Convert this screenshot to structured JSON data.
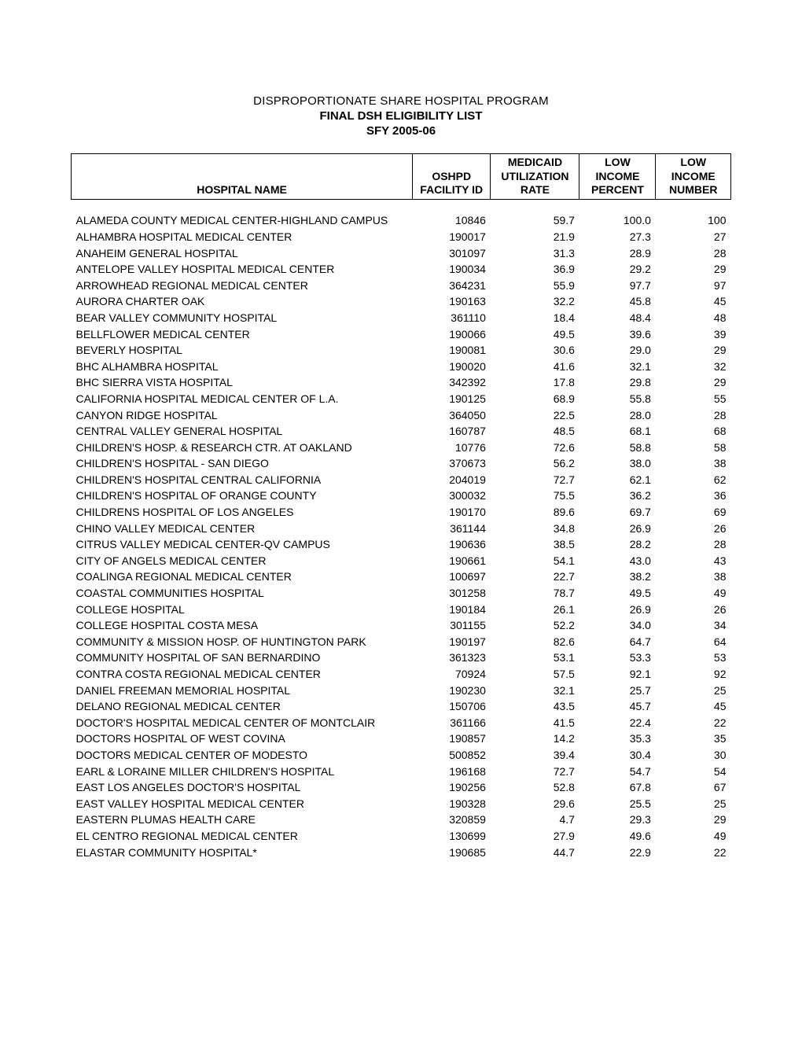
{
  "header": {
    "line1": "DISPROPORTIONATE SHARE HOSPITAL PROGRAM",
    "line2": "FINAL DSH ELIGIBILITY LIST",
    "line3": "SFY 2005-06"
  },
  "columns": {
    "name": "HOSPITAL NAME",
    "facility_id_top": "OSHPD",
    "facility_id_bot": "FACILITY ID",
    "rate_top": "MEDICAID",
    "rate_mid": "UTILIZATION",
    "rate_bot": "RATE",
    "pct_top": "LOW",
    "pct_mid": "INCOME",
    "pct_bot": "PERCENT",
    "num_top": "LOW",
    "num_mid": "INCOME",
    "num_bot": "NUMBER"
  },
  "rows": [
    {
      "name": "ALAMEDA COUNTY MEDICAL CENTER-HIGHLAND CAMPUS",
      "id": "10846",
      "rate": "59.7",
      "pct": "100.0",
      "num": "100"
    },
    {
      "name": "ALHAMBRA HOSPITAL MEDICAL CENTER",
      "id": "190017",
      "rate": "21.9",
      "pct": "27.3",
      "num": "27"
    },
    {
      "name": "ANAHEIM GENERAL HOSPITAL",
      "id": "301097",
      "rate": "31.3",
      "pct": "28.9",
      "num": "28"
    },
    {
      "name": "ANTELOPE VALLEY HOSPITAL MEDICAL CENTER",
      "id": "190034",
      "rate": "36.9",
      "pct": "29.2",
      "num": "29"
    },
    {
      "name": "ARROWHEAD REGIONAL MEDICAL CENTER",
      "id": "364231",
      "rate": "55.9",
      "pct": "97.7",
      "num": "97"
    },
    {
      "name": "AURORA CHARTER OAK",
      "id": "190163",
      "rate": "32.2",
      "pct": "45.8",
      "num": "45"
    },
    {
      "name": "BEAR VALLEY COMMUNITY HOSPITAL",
      "id": "361110",
      "rate": "18.4",
      "pct": "48.4",
      "num": "48"
    },
    {
      "name": "BELLFLOWER MEDICAL CENTER",
      "id": "190066",
      "rate": "49.5",
      "pct": "39.6",
      "num": "39"
    },
    {
      "name": "BEVERLY HOSPITAL",
      "id": "190081",
      "rate": "30.6",
      "pct": "29.0",
      "num": "29"
    },
    {
      "name": "BHC ALHAMBRA HOSPITAL",
      "id": "190020",
      "rate": "41.6",
      "pct": "32.1",
      "num": "32"
    },
    {
      "name": "BHC SIERRA VISTA HOSPITAL",
      "id": "342392",
      "rate": "17.8",
      "pct": "29.8",
      "num": "29"
    },
    {
      "name": "CALIFORNIA HOSPITAL MEDICAL CENTER OF L.A.",
      "id": "190125",
      "rate": "68.9",
      "pct": "55.8",
      "num": "55"
    },
    {
      "name": "CANYON RIDGE HOSPITAL",
      "id": "364050",
      "rate": "22.5",
      "pct": "28.0",
      "num": "28"
    },
    {
      "name": "CENTRAL VALLEY GENERAL HOSPITAL",
      "id": "160787",
      "rate": "48.5",
      "pct": "68.1",
      "num": "68"
    },
    {
      "name": "CHILDREN'S HOSP. & RESEARCH CTR. AT OAKLAND",
      "id": "10776",
      "rate": "72.6",
      "pct": "58.8",
      "num": "58"
    },
    {
      "name": "CHILDREN'S HOSPITAL - SAN DIEGO",
      "id": "370673",
      "rate": "56.2",
      "pct": "38.0",
      "num": "38"
    },
    {
      "name": "CHILDREN'S HOSPITAL CENTRAL CALIFORNIA",
      "id": "204019",
      "rate": "72.7",
      "pct": "62.1",
      "num": "62"
    },
    {
      "name": "CHILDREN'S HOSPITAL OF ORANGE COUNTY",
      "id": "300032",
      "rate": "75.5",
      "pct": "36.2",
      "num": "36"
    },
    {
      "name": "CHILDRENS HOSPITAL OF LOS ANGELES",
      "id": "190170",
      "rate": "89.6",
      "pct": "69.7",
      "num": "69"
    },
    {
      "name": "CHINO VALLEY MEDICAL CENTER",
      "id": "361144",
      "rate": "34.8",
      "pct": "26.9",
      "num": "26"
    },
    {
      "name": "CITRUS VALLEY MEDICAL CENTER-QV CAMPUS",
      "id": "190636",
      "rate": "38.5",
      "pct": "28.2",
      "num": "28"
    },
    {
      "name": "CITY OF ANGELS MEDICAL CENTER",
      "id": "190661",
      "rate": "54.1",
      "pct": "43.0",
      "num": "43"
    },
    {
      "name": "COALINGA REGIONAL MEDICAL CENTER",
      "id": "100697",
      "rate": "22.7",
      "pct": "38.2",
      "num": "38"
    },
    {
      "name": "COASTAL COMMUNITIES HOSPITAL",
      "id": "301258",
      "rate": "78.7",
      "pct": "49.5",
      "num": "49"
    },
    {
      "name": "COLLEGE HOSPITAL",
      "id": "190184",
      "rate": "26.1",
      "pct": "26.9",
      "num": "26"
    },
    {
      "name": "COLLEGE HOSPITAL COSTA MESA",
      "id": "301155",
      "rate": "52.2",
      "pct": "34.0",
      "num": "34"
    },
    {
      "name": "COMMUNITY & MISSION HOSP. OF HUNTINGTON PARK",
      "id": "190197",
      "rate": "82.6",
      "pct": "64.7",
      "num": "64"
    },
    {
      "name": "COMMUNITY HOSPITAL OF SAN BERNARDINO",
      "id": "361323",
      "rate": "53.1",
      "pct": "53.3",
      "num": "53"
    },
    {
      "name": "CONTRA COSTA REGIONAL MEDICAL CENTER",
      "id": "70924",
      "rate": "57.5",
      "pct": "92.1",
      "num": "92"
    },
    {
      "name": "DANIEL FREEMAN MEMORIAL HOSPITAL",
      "id": "190230",
      "rate": "32.1",
      "pct": "25.7",
      "num": "25"
    },
    {
      "name": "DELANO REGIONAL MEDICAL CENTER",
      "id": "150706",
      "rate": "43.5",
      "pct": "45.7",
      "num": "45"
    },
    {
      "name": "DOCTOR'S HOSPITAL MEDICAL CENTER OF MONTCLAIR",
      "id": "361166",
      "rate": "41.5",
      "pct": "22.4",
      "num": "22"
    },
    {
      "name": "DOCTORS HOSPITAL OF WEST COVINA",
      "id": "190857",
      "rate": "14.2",
      "pct": "35.3",
      "num": "35"
    },
    {
      "name": "DOCTORS MEDICAL CENTER OF MODESTO",
      "id": "500852",
      "rate": "39.4",
      "pct": "30.4",
      "num": "30"
    },
    {
      "name": "EARL & LORAINE MILLER CHILDREN'S HOSPITAL",
      "id": "196168",
      "rate": "72.7",
      "pct": "54.7",
      "num": "54"
    },
    {
      "name": "EAST LOS ANGELES DOCTOR'S HOSPITAL",
      "id": "190256",
      "rate": "52.8",
      "pct": "67.8",
      "num": "67"
    },
    {
      "name": "EAST VALLEY HOSPITAL MEDICAL CENTER",
      "id": "190328",
      "rate": "29.6",
      "pct": "25.5",
      "num": "25"
    },
    {
      "name": "EASTERN PLUMAS HEALTH CARE",
      "id": "320859",
      "rate": "4.7",
      "pct": "29.3",
      "num": "29"
    },
    {
      "name": "EL CENTRO REGIONAL MEDICAL CENTER",
      "id": "130699",
      "rate": "27.9",
      "pct": "49.6",
      "num": "49"
    },
    {
      "name": "ELASTAR COMMUNITY HOSPITAL*",
      "id": "190685",
      "rate": "44.7",
      "pct": "22.9",
      "num": "22"
    }
  ]
}
